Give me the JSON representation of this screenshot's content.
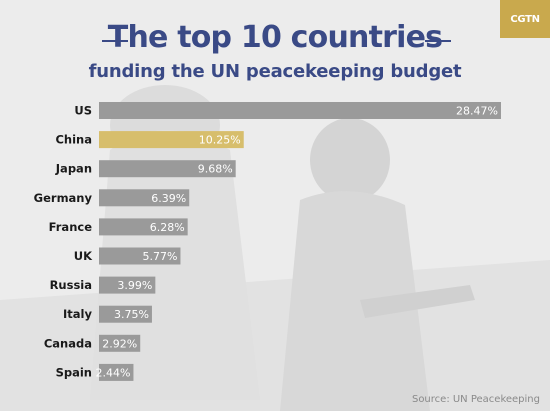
{
  "logo": {
    "text": "CGTN"
  },
  "title": "The top 10 countries",
  "subtitle": "funding the UN peacekeeping budget",
  "source": "Source: UN Peacekeeping",
  "colors": {
    "bar": "#9a9a9a",
    "highlight": "#d7be6c",
    "title": "#3a4a86",
    "label": "#1a1a1a"
  },
  "chart_data": {
    "type": "bar",
    "orientation": "horizontal",
    "title": "The top 10 countries funding the UN peacekeeping budget",
    "categories": [
      "US",
      "China",
      "Japan",
      "Germany",
      "France",
      "UK",
      "Russia",
      "Italy",
      "Canada",
      "Spain"
    ],
    "values": [
      28.47,
      10.25,
      9.68,
      6.39,
      6.28,
      5.77,
      3.99,
      3.75,
      2.92,
      2.44
    ],
    "value_labels": [
      "28.47%",
      "10.25%",
      "9.68%",
      "6.39%",
      "6.28%",
      "5.77%",
      "3.99%",
      "3.75%",
      "2.92%",
      "2.44%"
    ],
    "highlight": "China",
    "xlim": [
      0,
      28.47
    ],
    "unit": "%",
    "grid": false,
    "legend": "none"
  }
}
